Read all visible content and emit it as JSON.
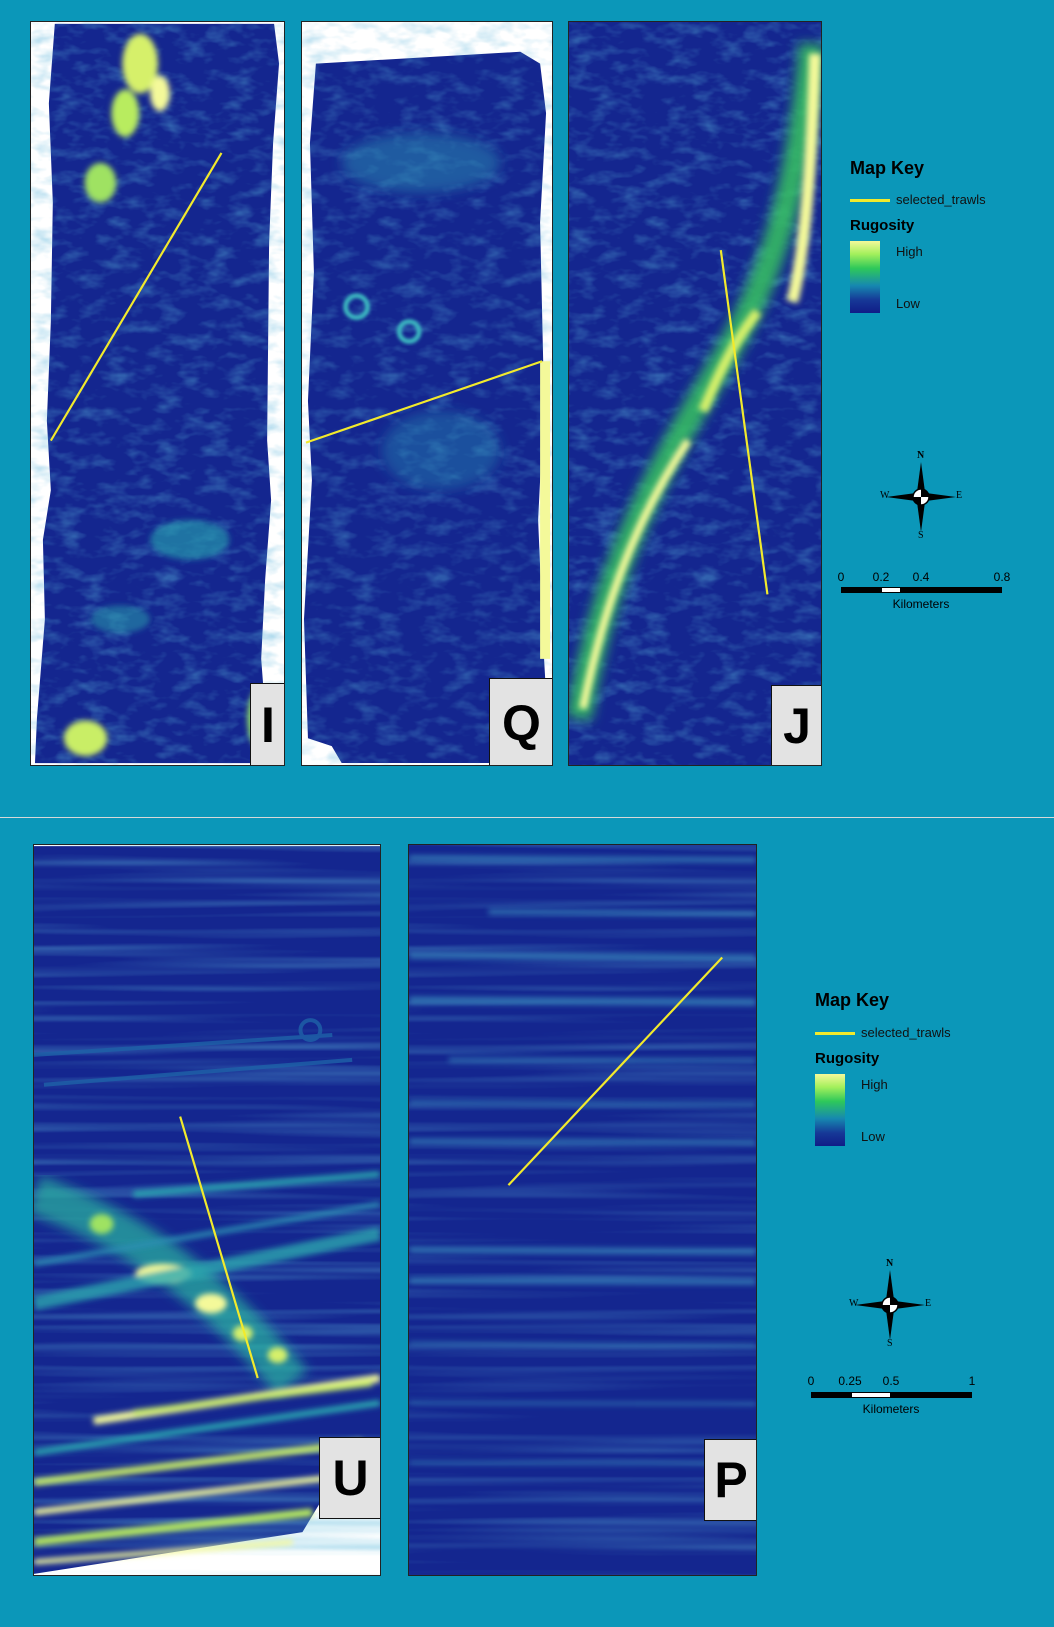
{
  "panels": [
    {
      "id": "I",
      "label": "I"
    },
    {
      "id": "Q",
      "label": "Q"
    },
    {
      "id": "J",
      "label": "J"
    },
    {
      "id": "U",
      "label": "U"
    },
    {
      "id": "P",
      "label": "P"
    }
  ],
  "legend_top": {
    "title": "Map Key",
    "line_label": "selected_trawls",
    "ramp_title": "Rugosity",
    "high": "High",
    "low": "Low"
  },
  "legend_bottom": {
    "title": "Map Key",
    "line_label": "selected_trawls",
    "ramp_title": "Rugosity",
    "high": "High",
    "low": "Low"
  },
  "compass": {
    "n": "N",
    "s": "S",
    "e": "E",
    "w": "W"
  },
  "scale_top": {
    "ticks": [
      "0",
      "0.2",
      "0.4",
      "0.8"
    ],
    "unit": "Kilometers"
  },
  "scale_bottom": {
    "ticks": [
      "0",
      "0.25",
      "0.5",
      "1"
    ],
    "unit": "Kilometers"
  },
  "colors": {
    "background": "#0b97b9",
    "raster_low": "#13238e",
    "raster_high": "#f4f99a",
    "trawl_line": "#f2ea2c"
  }
}
